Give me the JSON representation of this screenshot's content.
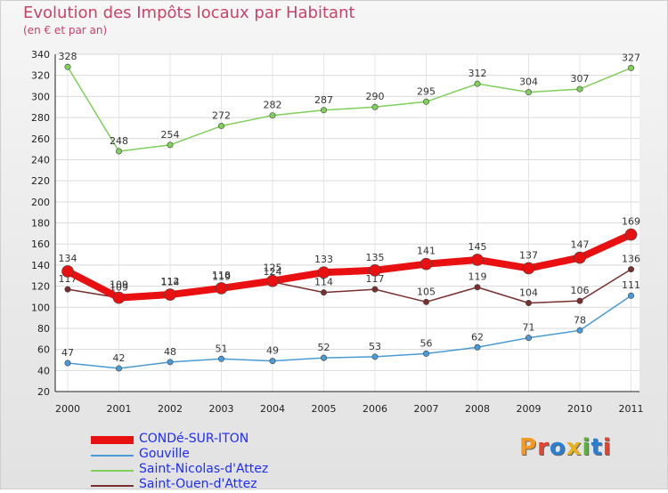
{
  "title": "Evolution des Impôts locaux par Habitant",
  "subtitle": "(en € et par an)",
  "logo": {
    "text": "Proxiti",
    "colors": [
      "#f39a1f",
      "#e8412c",
      "#2a7fd0",
      "#e8b21c",
      "#55b535",
      "#2a7fd0",
      "#e8412c"
    ]
  },
  "chart_data": {
    "type": "line",
    "title": "Evolution des Impôts locaux par Habitant",
    "ylabel": "(en € et par an)",
    "xlabel": "",
    "x": [
      "2000",
      "2001",
      "2002",
      "2003",
      "2004",
      "2005",
      "2006",
      "2007",
      "2008",
      "2009",
      "2010",
      "2011"
    ],
    "ylim": [
      20,
      340
    ],
    "yticks": [
      20,
      40,
      60,
      80,
      100,
      120,
      140,
      160,
      180,
      200,
      220,
      240,
      260,
      280,
      300,
      320,
      340
    ],
    "grid": true,
    "legend": "bottom-left",
    "series": [
      {
        "name": "Saint-Nicolas-d'Attez",
        "color": "#7fcf5a",
        "text_color": "#000000",
        "values": [
          328,
          248,
          254,
          272,
          282,
          287,
          290,
          295,
          312,
          304,
          307,
          327
        ]
      },
      {
        "name": "Saint-Ouen-d'Attez",
        "color": "#7a2e2e",
        "text_color": "#3d1a1a",
        "values": [
          117,
          109,
          114,
          119,
          124,
          114,
          117,
          105,
          119,
          104,
          106,
          136
        ]
      },
      {
        "name": "Gouville",
        "color": "#4a9ad6",
        "text_color": "#000000",
        "values": [
          47,
          42,
          48,
          51,
          49,
          52,
          53,
          56,
          62,
          71,
          78,
          111
        ]
      },
      {
        "name": "CONDé-SUR-ITON",
        "color": "#e81010",
        "text_color": "#1e2cff",
        "values": [
          134,
          109,
          112,
          118,
          125,
          133,
          135,
          141,
          145,
          137,
          147,
          169
        ]
      }
    ],
    "legend_order": [
      "CONDé-SUR-ITON",
      "Gouville",
      "Saint-Nicolas-d'Attez",
      "Saint-Ouen-d'Attez"
    ]
  }
}
